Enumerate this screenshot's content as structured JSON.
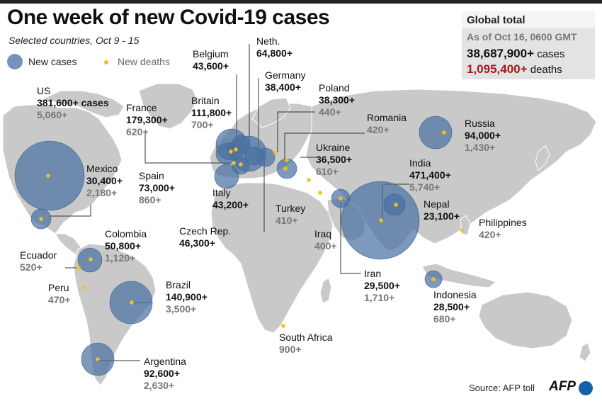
{
  "title": "One week of new Covid-19 cases",
  "subtitle": "Selected countries, Oct 9 - 15",
  "legend": {
    "cases": "New cases",
    "deaths": "New deaths"
  },
  "totals": {
    "title": "Global total",
    "as_of": "As of Oct 16, 0600 GMT",
    "cases_value": "38,687,900+",
    "cases_unit": "cases",
    "deaths_value": "1,095,400+",
    "deaths_unit": "deaths"
  },
  "source": "Source: AFP toll",
  "logo": "AFP",
  "colors": {
    "land": "#c9c9c9",
    "bubble": "#4b72a2",
    "death_dot": "#f4c01a",
    "deaths_highlight": "#a31a1a",
    "death_label": "#777777"
  },
  "countries": [
    {
      "id": "us",
      "name": "US",
      "cases": "381,600+",
      "cases_suffix": "cases",
      "deaths": "5,060+"
    },
    {
      "id": "mexico",
      "name": "Mexico",
      "cases": "30,400+",
      "deaths": "2,180+"
    },
    {
      "id": "colombia",
      "name": "Colombia",
      "cases": "50,800+",
      "deaths": "1,120+"
    },
    {
      "id": "ecuador",
      "name": "Ecuador",
      "deaths": "520+"
    },
    {
      "id": "peru",
      "name": "Peru",
      "deaths": "470+"
    },
    {
      "id": "brazil",
      "name": "Brazil",
      "cases": "140,900+",
      "deaths": "3,500+"
    },
    {
      "id": "argentina",
      "name": "Argentina",
      "cases": "92,600+",
      "deaths": "2,630+"
    },
    {
      "id": "france",
      "name": "France",
      "cases": "179,300+",
      "deaths": "620+"
    },
    {
      "id": "belgium",
      "name": "Belgium",
      "cases": "43,600+"
    },
    {
      "id": "britain",
      "name": "Britain",
      "cases": "111,800+",
      "deaths": "700+"
    },
    {
      "id": "neth",
      "name": "Neth.",
      "cases": "64,800+"
    },
    {
      "id": "germany",
      "name": "Germany",
      "cases": "38,400+"
    },
    {
      "id": "poland",
      "name": "Poland",
      "cases": "38,300+",
      "deaths": "440+"
    },
    {
      "id": "spain",
      "name": "Spain",
      "cases": "73,000+",
      "deaths": "860+"
    },
    {
      "id": "italy",
      "name": "Italy",
      "cases": "43,200+"
    },
    {
      "id": "czech",
      "name": "Czech Rep.",
      "cases": "46,300+"
    },
    {
      "id": "ukraine",
      "name": "Ukraine",
      "cases": "36,500+",
      "deaths": "610+"
    },
    {
      "id": "romania",
      "name": "Romania",
      "deaths": "420+"
    },
    {
      "id": "turkey",
      "name": "Turkey",
      "deaths": "410+"
    },
    {
      "id": "iraq",
      "name": "Iraq",
      "deaths": "400+"
    },
    {
      "id": "iran",
      "name": "Iran",
      "cases": "29,500+",
      "deaths": "1,710+"
    },
    {
      "id": "russia",
      "name": "Russia",
      "cases": "94,000+",
      "deaths": "1,430+"
    },
    {
      "id": "india",
      "name": "India",
      "cases": "471,400+",
      "deaths": "5,740+"
    },
    {
      "id": "nepal",
      "name": "Nepal",
      "cases": "23,100+"
    },
    {
      "id": "philippines",
      "name": "Philippines",
      "deaths": "420+"
    },
    {
      "id": "indonesia",
      "name": "Indonesia",
      "cases": "28,500+",
      "deaths": "680+"
    },
    {
      "id": "south_africa",
      "name": "South Africa",
      "deaths": "900+"
    }
  ]
}
